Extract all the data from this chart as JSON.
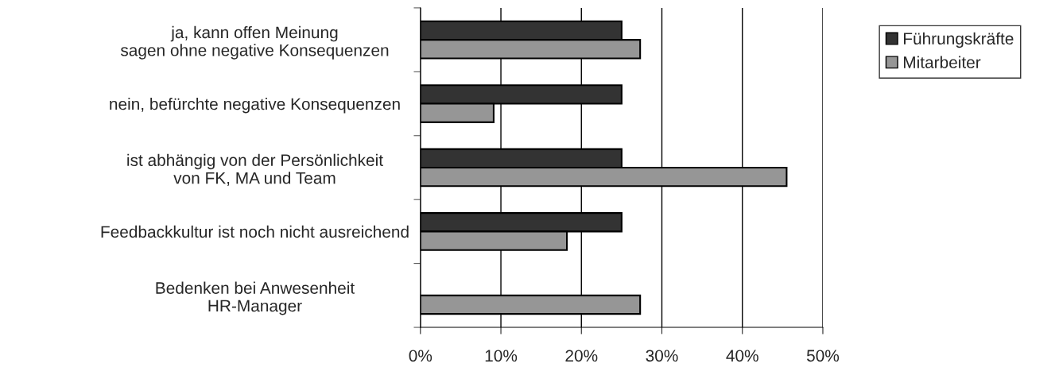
{
  "chart_data": {
    "type": "bar",
    "orientation": "horizontal",
    "categories": [
      "ja, kann offen Meinung\nsagen ohne negative Konsequenzen",
      "nein, befürchte negative Konsequenzen",
      "ist abhängig von der Persönlichkeit\nvon FK, MA und Team",
      "Feedbackkultur ist noch nicht ausreichend",
      "Bedenken bei Anwesenheit\nHR-Manager"
    ],
    "series": [
      {
        "name": "Führungskräfte",
        "color": "#333333",
        "values": [
          25,
          25,
          25,
          25,
          null
        ]
      },
      {
        "name": "Mitarbeiter",
        "color": "#969696",
        "values": [
          27.3,
          9.1,
          45.5,
          18.2,
          27.3
        ]
      }
    ],
    "xlim": [
      0,
      50
    ],
    "xticks": [
      {
        "value": 0,
        "label": "0%"
      },
      {
        "value": 10,
        "label": "10%"
      },
      {
        "value": 20,
        "label": "20%"
      },
      {
        "value": 30,
        "label": "30%"
      },
      {
        "value": 40,
        "label": "40%"
      },
      {
        "value": 50,
        "label": "50%"
      }
    ],
    "grid": "x",
    "legend": "top right"
  }
}
